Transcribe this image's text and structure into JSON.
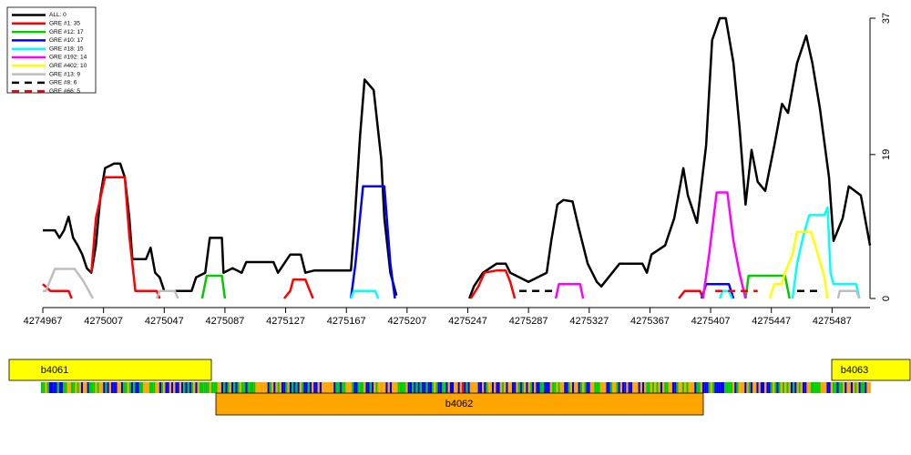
{
  "chart_data": {
    "type": "line",
    "xlim": [
      4274967,
      4275512
    ],
    "xticks": [
      4274967,
      4275007,
      4275047,
      4275087,
      4275127,
      4275167,
      4275207,
      4275247,
      4275287,
      4275327,
      4275367,
      4275407,
      4275447,
      4275487
    ],
    "ylim": [
      0,
      37
    ],
    "yticks": [
      0,
      19,
      37
    ],
    "legend": "top-left",
    "series": [
      {
        "name": "ALL: 0",
        "color": "#000000",
        "x": [
          4274967,
          4274975,
          4274978,
          4274981,
          4274984,
          4274987,
          4274990,
          4274993,
          4274996,
          4274999,
          4275002,
          4275005,
          4275008,
          4275014,
          4275018,
          4275021,
          4275024,
          4275026,
          4275029,
          4275035,
          4275038,
          4275041,
          4275044,
          4275047,
          4275065,
          4275068,
          4275074,
          4275077,
          4275085,
          4275086,
          4275092,
          4275098,
          4275101,
          4275119,
          4275122,
          4275130,
          4275137,
          4275140,
          4275146,
          4275170,
          4275172,
          4275176,
          4275179,
          4275185,
          4275190,
          4275192,
          4275196,
          4275200,
          4275225,
          4275248,
          4275251,
          4275257,
          4275266,
          4275272,
          4275275,
          4275287,
          4275299,
          4275302,
          4275306,
          4275310,
          4275316,
          4275320,
          4275326,
          4275332,
          4275335,
          4275347,
          4275362,
          4275365,
          4275368,
          4275377,
          4275383,
          4275389,
          4275392,
          4275395,
          4275398,
          4275404,
          4275408,
          4275413,
          4275417,
          4275422,
          4275426,
          4275430,
          4275434,
          4275438,
          4275443,
          4275449,
          4275454,
          4275458,
          4275464,
          4275470,
          4275474,
          4275479,
          4275485,
          4275488,
          4275494,
          4275498,
          4275506,
          4275512
        ],
        "values": [
          9.0,
          9.0,
          8.0,
          9.0,
          10.8,
          8.0,
          7.0,
          5.8,
          4.0,
          3.4,
          7.0,
          13.6,
          17.2,
          17.8,
          17.8,
          16.0,
          10.6,
          5.2,
          5.2,
          5.2,
          6.7,
          3.4,
          2.8,
          1.0,
          1.0,
          2.8,
          3.4,
          8.0,
          8.0,
          3.4,
          4.0,
          3.4,
          4.8,
          4.8,
          3.4,
          5.8,
          5.8,
          3.4,
          3.7,
          3.7,
          8.8,
          21.4,
          28.9,
          27.5,
          18.4,
          10.6,
          3.4,
          0.4,
          null,
          0,
          1.6,
          3.4,
          4.6,
          4.6,
          3.4,
          2.2,
          3.4,
          7.6,
          12.4,
          13.0,
          12.8,
          9.4,
          4.6,
          2.2,
          1.6,
          4.6,
          4.6,
          3.4,
          5.8,
          7.0,
          10.6,
          17.2,
          13.6,
          11.8,
          10.0,
          20.2,
          34.1,
          37,
          37,
          31.1,
          22.7,
          12.4,
          19.6,
          15.4,
          14.2,
          20.2,
          25.7,
          24.5,
          31.1,
          34.7,
          31.1,
          25.1,
          16.0,
          7.6,
          10.6,
          14.8,
          13.6,
          7.0
        ]
      },
      {
        "name": "GRE #1: 35",
        "color": "#ff0000",
        "x": [
          4274967,
          4274972,
          4274984,
          4274986,
          4274992,
          4274999,
          4275002,
          4275008,
          4275021,
          4275024,
          4275028,
          4275042,
          4275044,
          4275085,
          4275126,
          4275130,
          4275132,
          4275140,
          4275145,
          4275197,
          4275249,
          4275254,
          4275258,
          4275266,
          4275272,
          4275275,
          4275278,
          4275327,
          4275386,
          4275390,
          4275400,
          4275402
        ],
        "values": [
          1.9,
          1.0,
          1.0,
          0,
          null,
          3.4,
          10.6,
          16.0,
          16.0,
          8.2,
          1.0,
          1.0,
          0,
          null,
          0,
          1.0,
          2.5,
          2.5,
          0,
          null,
          0,
          1.6,
          3.4,
          3.7,
          3.7,
          2.2,
          0,
          null,
          0,
          1.0,
          1.0,
          0
        ]
      },
      {
        "name": "GRE #12: 17",
        "color": "#00cc00",
        "x": [
          4275072,
          4275075,
          4275085,
          4275087,
          4275267,
          4275430,
          4275432,
          4275456,
          4275459
        ],
        "values": [
          0,
          3.0,
          3.0,
          0,
          null,
          0,
          3.0,
          3.0,
          0
        ]
      },
      {
        "name": "GRE #10: 17",
        "color": "#0000ff",
        "x": [
          4275170,
          4275173,
          4275178,
          4275192,
          4275196,
          4275199,
          4275297,
          4275401,
          4275404,
          4275419,
          4275422
        ],
        "values": [
          0,
          4.6,
          14.8,
          14.8,
          4.6,
          0,
          null,
          0,
          1.9,
          1.9,
          0
        ]
      },
      {
        "name": "GRE #18: 15",
        "color": "#00ffff",
        "x": [
          4275170,
          4275172,
          4275186,
          4275188,
          4275297,
          4275413,
          4275415,
          4275419,
          4275421,
          4275442,
          4275461,
          4275464,
          4275468,
          4275472,
          4275482,
          4275484,
          4275486,
          4275488,
          4275503,
          4275505
        ],
        "values": [
          0,
          1.0,
          1.0,
          0,
          null,
          0,
          1.0,
          1.0,
          0,
          null,
          0,
          4.6,
          8.2,
          11.0,
          11.0,
          12.0,
          3.4,
          1.9,
          1.9,
          0
        ]
      },
      {
        "name": "GRE #192: 14",
        "color": "#ff00ff",
        "x": [
          4275305,
          4275307,
          4275321,
          4275323,
          4275367,
          4275402,
          4275406,
          4275411,
          4275418,
          4275422,
          4275426,
          4275430
        ],
        "values": [
          0,
          1.9,
          1.9,
          0,
          null,
          0,
          5.8,
          14.0,
          14.0,
          7.6,
          3.4,
          0
        ]
      },
      {
        "name": "GRE #402: 10",
        "color": "#ffff00",
        "x": [
          4275446,
          4275449,
          4275454,
          4275456,
          4275461,
          4275464,
          4275473,
          4275476,
          4275482,
          4275484
        ],
        "values": [
          0,
          1.9,
          1.9,
          3.4,
          5.8,
          8.8,
          8.8,
          7.0,
          2.8,
          0
        ]
      },
      {
        "name": "GRE #13: 9",
        "color": "#bebebe",
        "x": [
          4274967,
          4274969,
          4274975,
          4274988,
          4274994,
          4275000,
          4275017,
          4275042,
          4275044,
          4275054,
          4275056,
          4275267,
          4275491,
          4275492,
          4275503,
          4275505
        ],
        "values": [
          1.0,
          1.0,
          3.9,
          3.9,
          2.2,
          0,
          null,
          0,
          1.0,
          1.0,
          0,
          null,
          0,
          1.0,
          1.0,
          0
        ]
      },
      {
        "name": "GRE #8: 6",
        "color": "#000000",
        "dash": true,
        "x": [
          4275281,
          4275305,
          4275367,
          4275464,
          4275479
        ],
        "values": [
          1.0,
          1.0,
          null,
          1.0,
          1.0
        ]
      },
      {
        "name": "GRE #66: 5",
        "color": "#ff0000",
        "dash": true,
        "x": [
          4275410,
          4275438
        ],
        "values": [
          1.0,
          1.0
        ]
      }
    ]
  },
  "genes": [
    {
      "label": "b4061"
    },
    {
      "label": "b4062"
    },
    {
      "label": "b4063"
    }
  ]
}
